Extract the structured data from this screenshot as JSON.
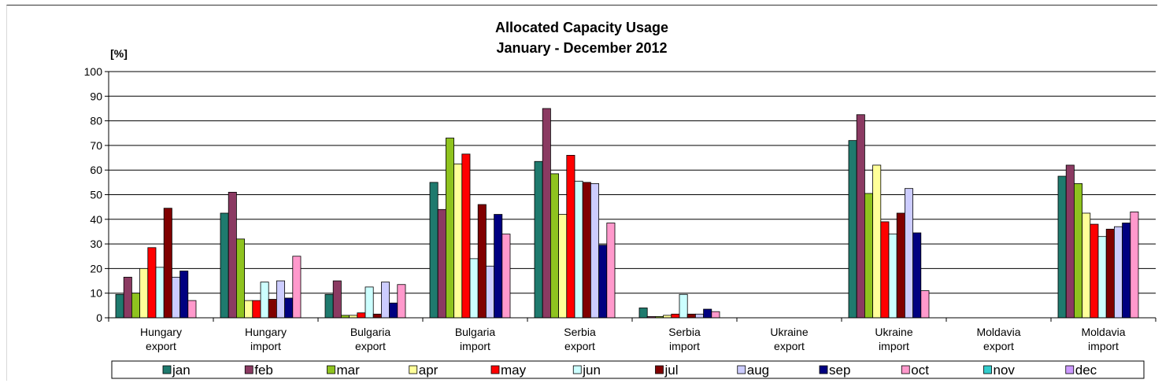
{
  "chart_data": {
    "type": "bar",
    "title": "Allocated Capacity Usage",
    "subtitle": "January - December 2012",
    "ylabel": "[%]",
    "ylim": [
      0,
      100
    ],
    "yticks": [
      "0",
      "10",
      "20",
      "30",
      "40",
      "50",
      "60",
      "70",
      "80",
      "90",
      "100"
    ],
    "grid": true,
    "legend_position": "bottom",
    "categories": [
      [
        "Hungary",
        "export"
      ],
      [
        "Hungary",
        "import"
      ],
      [
        "Bulgaria",
        "export"
      ],
      [
        "Bulgaria",
        "import"
      ],
      [
        "Serbia",
        "export"
      ],
      [
        "Serbia",
        "import"
      ],
      [
        "Ukraine",
        "export"
      ],
      [
        "Ukraine",
        "import"
      ],
      [
        "Moldavia",
        "export"
      ],
      [
        "Moldavia",
        "import"
      ]
    ],
    "series": [
      {
        "name": "jan",
        "color": "#1f7a6e",
        "values": [
          9.5,
          42.5,
          9.5,
          55,
          63.5,
          4,
          0,
          72,
          0,
          57.5
        ]
      },
      {
        "name": "feb",
        "color": "#8b3a62",
        "values": [
          16.5,
          51,
          15,
          44,
          85,
          0.5,
          0,
          82.5,
          0,
          62
        ]
      },
      {
        "name": "mar",
        "color": "#8fc31f",
        "values": [
          10,
          32,
          1,
          73,
          58.5,
          0.5,
          0,
          50.5,
          0,
          54.5
        ]
      },
      {
        "name": "apr",
        "color": "#ffff99",
        "values": [
          20,
          7,
          1,
          62.5,
          42,
          1,
          0,
          62,
          0,
          42.5
        ]
      },
      {
        "name": "may",
        "color": "#ff0000",
        "values": [
          28.5,
          7,
          2,
          66.5,
          66,
          1.5,
          0,
          39,
          0,
          38
        ]
      },
      {
        "name": "jun",
        "color": "#ccffff",
        "values": [
          20.5,
          14.5,
          12.5,
          24,
          55.5,
          9.5,
          0,
          34,
          0,
          33
        ]
      },
      {
        "name": "jul",
        "color": "#800000",
        "values": [
          44.5,
          7.5,
          1.5,
          46,
          55,
          1.5,
          0,
          42.5,
          0,
          36
        ]
      },
      {
        "name": "aug",
        "color": "#ccccff",
        "values": [
          16.5,
          15,
          14.5,
          21,
          54.5,
          1.5,
          0,
          52.5,
          0,
          37
        ]
      },
      {
        "name": "sep",
        "color": "#000080",
        "values": [
          19,
          8,
          6,
          42,
          29.5,
          3.5,
          0,
          34.5,
          0,
          38.5
        ]
      },
      {
        "name": "oct",
        "color": "#ff99cc",
        "values": [
          7,
          25,
          13.5,
          34,
          38.5,
          2.5,
          0,
          11,
          0,
          43
        ]
      },
      {
        "name": "nov",
        "color": "#33cccc",
        "values": [
          0,
          0,
          0,
          0,
          0,
          0,
          0,
          0,
          0,
          0
        ]
      },
      {
        "name": "dec",
        "color": "#cc99ff",
        "values": [
          0,
          0,
          0,
          0,
          0,
          0,
          0,
          0,
          0,
          0
        ]
      }
    ]
  }
}
